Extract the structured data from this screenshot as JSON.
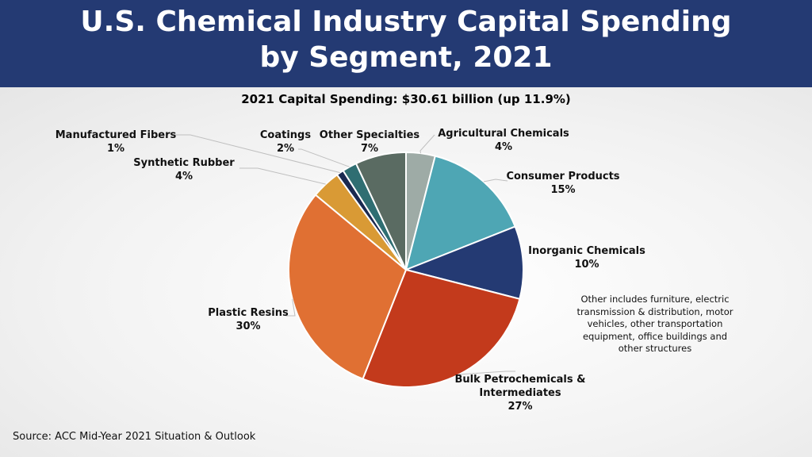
{
  "header": {
    "title_line1": "U.S. Chemical Industry Capital Spending",
    "title_line2": "by Segment, 2021",
    "background": "#243a73"
  },
  "chart_data": {
    "type": "pie",
    "title": "2021 Capital Spending: $30.61 billion (up 11.9%)",
    "slices": [
      {
        "name": "Agricultural Chemicals",
        "value": 4,
        "label": "4%",
        "color": "#9eaba6"
      },
      {
        "name": "Consumer Products",
        "value": 15,
        "label": "15%",
        "color": "#4ea6b4"
      },
      {
        "name": "Inorganic Chemicals",
        "value": 10,
        "label": "10%",
        "color": "#243a73"
      },
      {
        "name": "Bulk Petrochemicals & Intermediates",
        "value": 27,
        "label": "27%",
        "color": "#c33a1c"
      },
      {
        "name": "Plastic Resins",
        "value": 30,
        "label": "30%",
        "color": "#e07033"
      },
      {
        "name": "Synthetic Rubber",
        "value": 4,
        "label": "4%",
        "color": "#d99a35"
      },
      {
        "name": "Manufactured Fibers",
        "value": 1,
        "label": "1%",
        "color": "#1a2950"
      },
      {
        "name": "Coatings",
        "value": 2,
        "label": "2%",
        "color": "#2f6e72"
      },
      {
        "name": "Other Specialties",
        "value": 7,
        "label": "7%",
        "color": "#5a6b62"
      }
    ]
  },
  "labels": {
    "bulk_line1": "Bulk Petrochemicals &",
    "bulk_line2": "Intermediates"
  },
  "note": "Other includes furniture, electric transmission & distribution, motor vehicles, other transportation equipment, office buildings and other structures",
  "source": "Source: ACC Mid-Year 2021 Situation & Outlook"
}
